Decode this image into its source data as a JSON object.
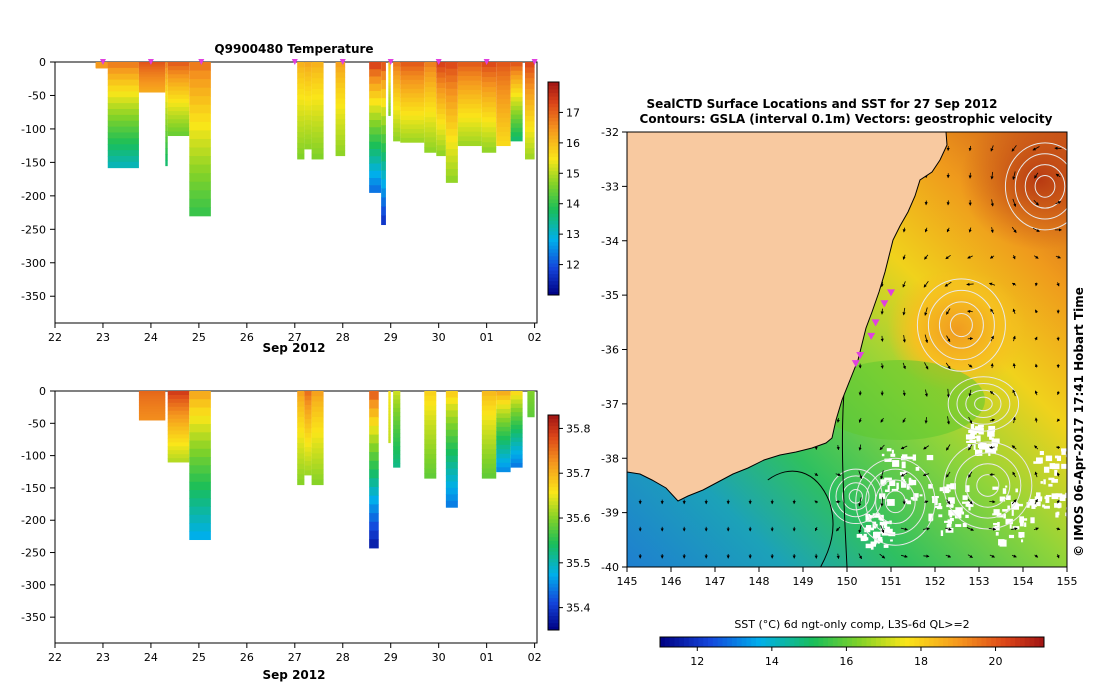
{
  "chart_data": [
    {
      "type": "heatmap",
      "id": "temperature-profile",
      "title": "Q9900480  Temperature",
      "xlabel": "Sep 2012",
      "x_ticks": [
        "22",
        "23",
        "24",
        "25",
        "26",
        "27",
        "28",
        "29",
        "30",
        "01",
        "02"
      ],
      "x_range_days": [
        22,
        32.05
      ],
      "ylim": [
        -390,
        0
      ],
      "y_ticks": [
        0,
        -50,
        -100,
        -150,
        -200,
        -250,
        -300,
        -350
      ],
      "colorbar": {
        "min": 11,
        "max": 18,
        "ticks": [
          12,
          13,
          14,
          15,
          16,
          17
        ]
      },
      "surface_markers_days": [
        23,
        24,
        25.05,
        27,
        28,
        29,
        30,
        31,
        32
      ],
      "profiles": [
        {
          "t0": 22.85,
          "t1": 23.1,
          "depth": 8,
          "top": 16.4,
          "bottom": 16.4
        },
        {
          "t0": 23.1,
          "t1": 23.75,
          "depth": 158,
          "top": 16.9,
          "bottom": 13.1
        },
        {
          "t0": 23.75,
          "t1": 24.3,
          "depth": 45,
          "top": 17.2,
          "bottom": 16.2
        },
        {
          "t0": 24.3,
          "t1": 24.35,
          "depth": 155,
          "top": 16.8,
          "bottom": 13.6
        },
        {
          "t0": 24.35,
          "t1": 24.8,
          "depth": 110,
          "top": 17.2,
          "bottom": 14.4
        },
        {
          "t0": 24.8,
          "t1": 25.25,
          "depth": 230,
          "top": 16.9,
          "bottom": 14.0
        },
        {
          "t0": 27.05,
          "t1": 27.2,
          "depth": 145,
          "top": 16.2,
          "bottom": 14.6
        },
        {
          "t0": 27.2,
          "t1": 27.35,
          "depth": 130,
          "top": 16.3,
          "bottom": 14.7
        },
        {
          "t0": 27.35,
          "t1": 27.6,
          "depth": 145,
          "top": 16.2,
          "bottom": 14.6
        },
        {
          "t0": 27.85,
          "t1": 28.05,
          "depth": 140,
          "top": 16.4,
          "bottom": 14.7
        },
        {
          "t0": 28.55,
          "t1": 28.8,
          "depth": 195,
          "top": 17.6,
          "bottom": 12.2
        },
        {
          "t0": 28.8,
          "t1": 28.9,
          "depth": 243,
          "top": 17.4,
          "bottom": 11.6
        },
        {
          "t0": 28.95,
          "t1": 29.0,
          "depth": 80,
          "top": 16.0,
          "bottom": 14.6
        },
        {
          "t0": 29.05,
          "t1": 29.2,
          "depth": 118,
          "top": 16.9,
          "bottom": 14.7
        },
        {
          "t0": 29.2,
          "t1": 29.7,
          "depth": 120,
          "top": 17.2,
          "bottom": 14.8
        },
        {
          "t0": 29.7,
          "t1": 29.95,
          "depth": 135,
          "top": 16.8,
          "bottom": 14.7
        },
        {
          "t0": 29.95,
          "t1": 30.15,
          "depth": 140,
          "top": 17.5,
          "bottom": 14.7
        },
        {
          "t0": 30.15,
          "t1": 30.4,
          "depth": 180,
          "top": 17.4,
          "bottom": 14.7
        },
        {
          "t0": 30.4,
          "t1": 30.9,
          "depth": 125,
          "top": 17.2,
          "bottom": 14.8
        },
        {
          "t0": 30.9,
          "t1": 31.2,
          "depth": 135,
          "top": 17.4,
          "bottom": 14.7
        },
        {
          "t0": 31.2,
          "t1": 31.5,
          "depth": 125,
          "top": 17.2,
          "bottom": 15.6
        },
        {
          "t0": 31.5,
          "t1": 31.75,
          "depth": 118,
          "top": 17.3,
          "bottom": 13.6
        },
        {
          "t0": 31.8,
          "t1": 32.0,
          "depth": 145,
          "top": 17.4,
          "bottom": 14.8
        }
      ]
    },
    {
      "type": "heatmap",
      "id": "salinity-profile",
      "title": "",
      "xlabel": "Sep 2012",
      "x_ticks": [
        "22",
        "23",
        "24",
        "25",
        "26",
        "27",
        "28",
        "29",
        "30",
        "01",
        "02"
      ],
      "x_range_days": [
        22,
        32.05
      ],
      "ylim": [
        -390,
        0
      ],
      "y_ticks": [
        0,
        -50,
        -100,
        -150,
        -200,
        -250,
        -300,
        -350
      ],
      "colorbar": {
        "min": 35.35,
        "max": 35.83,
        "ticks": [
          35.4,
          35.5,
          35.6,
          35.7,
          35.8
        ]
      },
      "profiles": [
        {
          "t0": 23.75,
          "t1": 24.3,
          "depth": 45,
          "top": 35.76,
          "bottom": 35.73
        },
        {
          "t0": 24.35,
          "t1": 24.8,
          "depth": 110,
          "top": 35.8,
          "bottom": 35.62
        },
        {
          "t0": 24.8,
          "t1": 25.25,
          "depth": 230,
          "top": 35.72,
          "bottom": 35.47
        },
        {
          "t0": 27.05,
          "t1": 27.2,
          "depth": 145,
          "top": 35.72,
          "bottom": 35.6
        },
        {
          "t0": 27.2,
          "t1": 27.35,
          "depth": 130,
          "top": 35.76,
          "bottom": 35.61
        },
        {
          "t0": 27.35,
          "t1": 27.6,
          "depth": 145,
          "top": 35.72,
          "bottom": 35.6
        },
        {
          "t0": 28.55,
          "t1": 28.75,
          "depth": 243,
          "top": 35.78,
          "bottom": 35.37
        },
        {
          "t0": 28.95,
          "t1": 29.0,
          "depth": 80,
          "top": 35.66,
          "bottom": 35.63
        },
        {
          "t0": 29.05,
          "t1": 29.2,
          "depth": 118,
          "top": 35.64,
          "bottom": 35.52
        },
        {
          "t0": 29.7,
          "t1": 29.95,
          "depth": 135,
          "top": 35.68,
          "bottom": 35.58
        },
        {
          "t0": 30.15,
          "t1": 30.4,
          "depth": 180,
          "top": 35.69,
          "bottom": 35.44
        },
        {
          "t0": 30.9,
          "t1": 31.2,
          "depth": 135,
          "top": 35.7,
          "bottom": 35.58
        },
        {
          "t0": 31.2,
          "t1": 31.5,
          "depth": 125,
          "top": 35.72,
          "bottom": 35.45
        },
        {
          "t0": 31.5,
          "t1": 31.75,
          "depth": 118,
          "top": 35.68,
          "bottom": 35.44
        },
        {
          "t0": 31.85,
          "t1": 32.0,
          "depth": 40,
          "top": 35.6,
          "bottom": 35.58
        }
      ]
    },
    {
      "type": "heatmap",
      "id": "sst-map",
      "title_line1": "SealCTD Surface Locations and SST for 27 Sep 2012",
      "title_line2": "Contours: GSLA (interval 0.1m) Vectors: geostrophic velocity",
      "x_ticks": [
        "145",
        "146",
        "147",
        "148",
        "149",
        "150",
        "151",
        "152",
        "153",
        "154",
        "155"
      ],
      "y_ticks": [
        "-32",
        "-33",
        "-34",
        "-35",
        "-36",
        "-37",
        "-38",
        "-39",
        "-40"
      ],
      "lon_range": [
        145,
        155
      ],
      "lat_range": [
        -40,
        -32
      ],
      "colorbar_label": "SST (°C) 6d ngt-only comp, L3S-6d QL>=2",
      "colorbar": {
        "min": 11,
        "max": 21.3,
        "ticks": [
          12,
          14,
          16,
          18,
          20
        ]
      },
      "credit": "© IMOS 06-Apr-2017 17:41 Hobart Time",
      "eddies": [
        {
          "lon": 152.6,
          "lat": -35.55,
          "r_lon": 1.0,
          "r_lat": 0.85,
          "dir": "anticlockwise"
        },
        {
          "lon": 154.5,
          "lat": -33.0,
          "r_lon": 0.9,
          "r_lat": 0.8,
          "dir": "anticlockwise"
        },
        {
          "lon": 151.1,
          "lat": -38.8,
          "r_lon": 0.9,
          "r_lat": 0.8,
          "dir": "anticlockwise"
        },
        {
          "lon": 153.2,
          "lat": -38.5,
          "r_lon": 1.0,
          "r_lat": 0.8,
          "dir": "anticlockwise"
        },
        {
          "lon": 153.1,
          "lat": -37.0,
          "r_lon": 0.8,
          "r_lat": 0.5,
          "dir": "anticlockwise"
        },
        {
          "lon": 150.2,
          "lat": -38.7,
          "r_lon": 0.6,
          "r_lat": 0.5,
          "dir": "clockwise"
        }
      ],
      "seal_locations": [
        {
          "lon": 150.85,
          "lat": -35.15
        },
        {
          "lon": 151.0,
          "lat": -34.95
        },
        {
          "lon": 150.65,
          "lat": -35.5
        },
        {
          "lon": 150.55,
          "lat": -35.75
        },
        {
          "lon": 150.3,
          "lat": -36.1
        },
        {
          "lon": 150.2,
          "lat": -36.25
        }
      ]
    }
  ],
  "colors": {
    "marker": "#e040e0",
    "land": "#f8c9a0",
    "no_data": "#ffffff",
    "contour": "#e9e9e9",
    "coast_contour": "#000000"
  }
}
